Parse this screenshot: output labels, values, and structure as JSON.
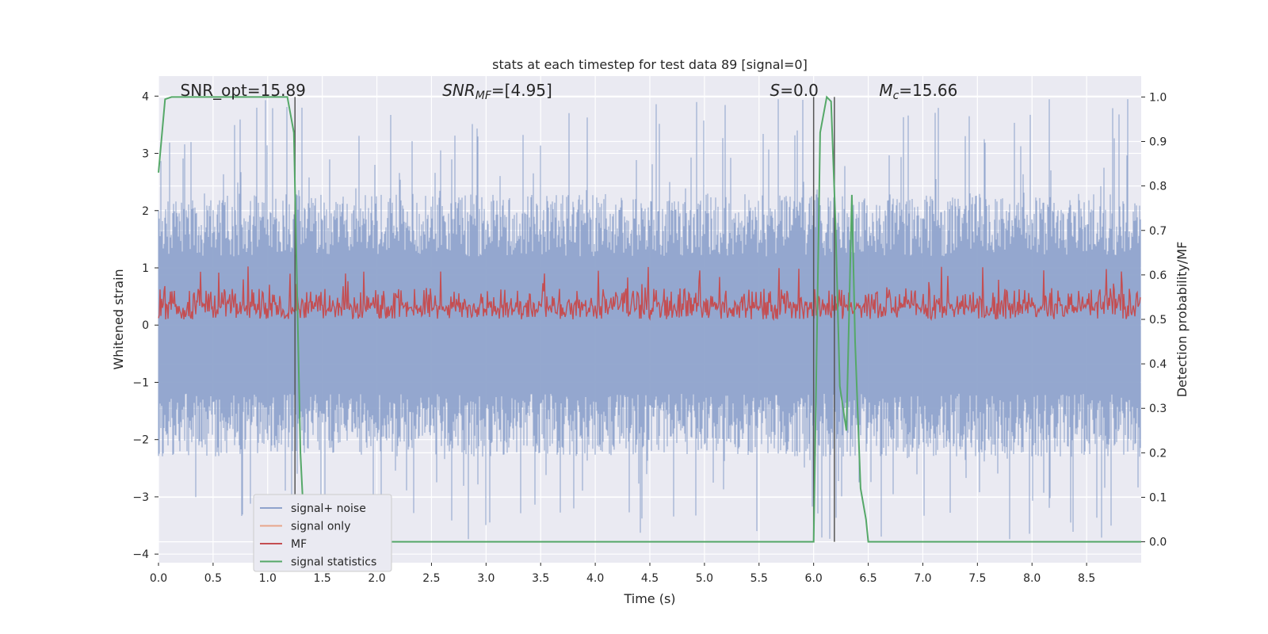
{
  "chart_data": {
    "type": "line",
    "title": "stats at each timestep for test data 89 [signal=0]",
    "xlabel": "Time (s)",
    "ylabel_left": "Whitened strain",
    "ylabel_right": "Detection probability/MF",
    "xlim": [
      0.0,
      9.0
    ],
    "ylim_left": [
      -4.15,
      4.35
    ],
    "ylim_right": [
      -0.047,
      1.047
    ],
    "grid": true,
    "legend_position": "lower-left",
    "x_ticks": [
      "0.0",
      "0.5",
      "1.0",
      "1.5",
      "2.0",
      "2.5",
      "3.0",
      "3.5",
      "4.0",
      "4.5",
      "5.0",
      "5.5",
      "6.0",
      "6.5",
      "7.0",
      "7.5",
      "8.0",
      "8.5"
    ],
    "y_ticks_left": [
      "4",
      "3",
      "2",
      "1",
      "0",
      "−1",
      "−2",
      "−3",
      "−4"
    ],
    "y_ticks_right": [
      "1.0",
      "0.9",
      "0.8",
      "0.7",
      "0.6",
      "0.5",
      "0.4",
      "0.3",
      "0.2",
      "0.1",
      "0.0"
    ],
    "annotations": [
      {
        "id": "snr-opt",
        "text": "SNR_opt=15.89",
        "x": 0.2
      },
      {
        "id": "snr-mf",
        "text": "SNRMF=[4.95]",
        "x": 2.6
      },
      {
        "id": "s-val",
        "text": "S=0.0",
        "x": 5.6
      },
      {
        "id": "mc-val",
        "text": "Mc=15.66",
        "x": 6.6
      }
    ],
    "vlines": [
      1.25,
      6.0,
      6.19
    ],
    "series": [
      {
        "name": "signal+ noise",
        "color": "#8fa3cc",
        "axis": "left",
        "kind": "noise",
        "envelope": [
          -2.0,
          2.0
        ],
        "peak_max": 3.95,
        "peak_min": -3.75
      },
      {
        "name": "signal only",
        "color": "#e8a58a",
        "axis": "left",
        "kind": "line",
        "x": [],
        "y": []
      },
      {
        "name": "MF",
        "color": "#c44e52",
        "axis": "right",
        "kind": "mf",
        "baseline": 0.52,
        "min": 0.5,
        "spike_max": 0.62
      },
      {
        "name": "signal statistics",
        "color": "#55a868",
        "axis": "right",
        "kind": "line",
        "x": [
          0.0,
          0.06,
          0.12,
          0.2,
          0.4,
          0.8,
          1.18,
          1.24,
          1.3,
          1.34,
          1.4,
          2.0,
          3.0,
          4.0,
          5.0,
          6.0,
          6.06,
          6.12,
          6.16,
          6.2,
          6.24,
          6.3,
          6.35,
          6.38,
          6.43,
          6.48,
          6.5,
          7.0,
          8.0,
          9.0
        ],
        "y": [
          0.83,
          0.995,
          1.0,
          1.0,
          1.0,
          1.0,
          1.0,
          0.92,
          0.2,
          0.0,
          0.0,
          0.0,
          0.0,
          0.0,
          0.0,
          0.0,
          0.92,
          1.0,
          0.99,
          0.72,
          0.35,
          0.25,
          0.78,
          0.45,
          0.12,
          0.05,
          0.0,
          0.0,
          0.0,
          0.0
        ]
      }
    ]
  }
}
